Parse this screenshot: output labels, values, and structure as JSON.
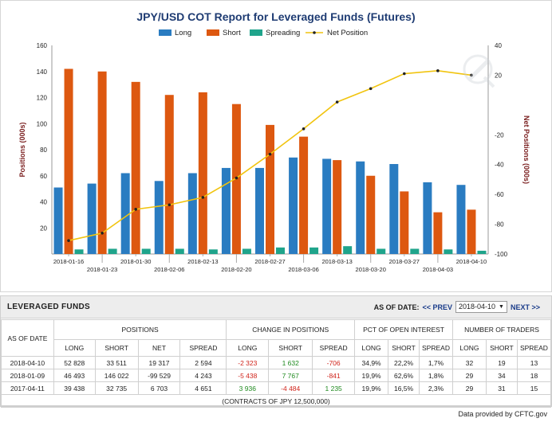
{
  "chart_data": {
    "type": "bar",
    "title": "JPY/USD COT Report for Leveraged Funds (Futures)",
    "ylabel": "Positions (000s)",
    "y2label": "Net Positions (000s)",
    "ylim": [
      0,
      160
    ],
    "y2lim": [
      -100,
      40
    ],
    "yticks": [
      20,
      40,
      60,
      80,
      100,
      120,
      140,
      160
    ],
    "y2ticks": [
      -100,
      -80,
      -60,
      -40,
      -20,
      20,
      40
    ],
    "grid": false,
    "legend_position": "top",
    "categories": [
      "2018-01-16",
      "2018-01-23",
      "2018-01-30",
      "2018-02-06",
      "2018-02-13",
      "2018-02-20",
      "2018-02-27",
      "2018-03-06",
      "2018-03-13",
      "2018-03-20",
      "2018-03-27",
      "2018-04-03",
      "2018-04-10"
    ],
    "series": [
      {
        "name": "Long",
        "type": "bar",
        "axis": "left",
        "color": "#2a7cc1",
        "values": [
          51,
          54,
          62,
          56,
          62,
          66,
          66,
          74,
          73,
          71,
          69,
          55,
          53
        ]
      },
      {
        "name": "Short",
        "type": "bar",
        "axis": "left",
        "color": "#dd5810",
        "values": [
          142,
          140,
          132,
          122,
          124,
          115,
          99,
          90,
          72,
          60,
          48,
          32,
          34
        ]
      },
      {
        "name": "Spreading",
        "type": "bar",
        "axis": "left",
        "color": "#1fa48b",
        "values": [
          3.5,
          4,
          4,
          4,
          3.5,
          4,
          5,
          5,
          6,
          4,
          4,
          3.5,
          2.5
        ]
      },
      {
        "name": "Net Position",
        "type": "line",
        "axis": "right",
        "color": "#f1c40f",
        "marker_color": "#222222",
        "values": [
          -91,
          -86,
          -70,
          -67,
          -62,
          -49,
          -33,
          -16,
          2,
          11,
          21,
          23,
          20
        ]
      }
    ]
  },
  "table": {
    "title": "LEVERAGED FUNDS",
    "as_of_label": "AS OF DATE:",
    "prev_label": "<< PREV",
    "selected_date": "2018-04-10",
    "next_label": "NEXT >>",
    "header_asof": "AS OF DATE",
    "groups": [
      "POSITIONS",
      "CHANGE IN POSITIONS",
      "PCT OF OPEN INTEREST",
      "NUMBER OF TRADERS"
    ],
    "subheaders": [
      "LONG",
      "SHORT",
      "NET",
      "SPREAD",
      "LONG",
      "SHORT",
      "SPREAD",
      "LONG",
      "SHORT",
      "SPREAD",
      "LONG",
      "SHORT",
      "SPREAD"
    ],
    "rows": [
      {
        "date": "2018-04-10",
        "pos_long": "52 828",
        "pos_short": "33 511",
        "pos_net": "19 317",
        "pos_spread": "2 594",
        "chg_long": "-2 323",
        "chg_short": "1 632",
        "chg_spread": "-706",
        "pct_long": "34,9%",
        "pct_short": "22,2%",
        "pct_spread": "1,7%",
        "tr_long": "32",
        "tr_short": "19",
        "tr_spread": "13"
      },
      {
        "date": "2018-01-09",
        "pos_long": "46 493",
        "pos_short": "146 022",
        "pos_net": "-99 529",
        "pos_spread": "4 243",
        "chg_long": "-5 438",
        "chg_short": "7 767",
        "chg_spread": "-841",
        "pct_long": "19,9%",
        "pct_short": "62,6%",
        "pct_spread": "1,8%",
        "tr_long": "29",
        "tr_short": "34",
        "tr_spread": "18"
      },
      {
        "date": "2017-04-11",
        "pos_long": "39 438",
        "pos_short": "32 735",
        "pos_net": "6 703",
        "pos_spread": "4 651",
        "chg_long": "3 936",
        "chg_short": "-4 484",
        "chg_spread": "1 235",
        "pct_long": "19,9%",
        "pct_short": "16,5%",
        "pct_spread": "2,3%",
        "tr_long": "29",
        "tr_short": "31",
        "tr_spread": "15"
      }
    ],
    "contracts_note": "(CONTRACTS OF JPY 12,500,000)"
  },
  "footer": "Data provided by CFTC.gov"
}
